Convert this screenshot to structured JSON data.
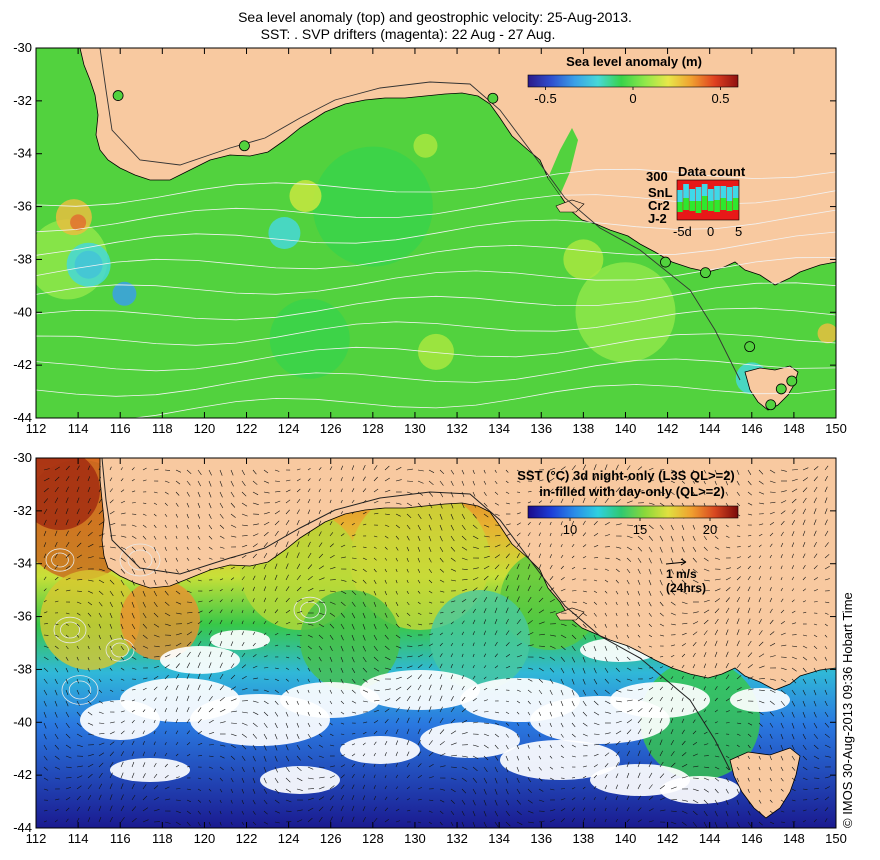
{
  "header": {
    "title_line1": "Sea level anomaly (top) and geostrophic velocity: 25-Aug-2013.",
    "title_line2": "SST: . SVP drifters (magenta): 22 Aug - 27 Aug."
  },
  "axes": {
    "x_ticks": [
      "112",
      "114",
      "116",
      "118",
      "120",
      "122",
      "124",
      "126",
      "128",
      "130",
      "132",
      "134",
      "136",
      "138",
      "140",
      "142",
      "144",
      "146",
      "148",
      "150"
    ],
    "y_ticks": [
      "-30",
      "-32",
      "-34",
      "-36",
      "-38",
      "-40",
      "-42",
      "-44"
    ],
    "lon_range": [
      112,
      150
    ],
    "lat_range": [
      -44,
      -30
    ]
  },
  "top_panel": {
    "colorbar": {
      "title": "Sea level anomaly (m)",
      "tick_labels": [
        "-0.5",
        "0",
        "0.5"
      ],
      "range": [
        -0.6,
        0.6
      ],
      "colors": [
        "#2b1a8a",
        "#2f4fcf",
        "#3aa0e8",
        "#47d8d8",
        "#39d34a",
        "#8fe84a",
        "#e8e84a",
        "#f0a030",
        "#e04020",
        "#901010"
      ]
    },
    "data_count": {
      "title": "Data count",
      "max_label": "300",
      "series_labels": [
        "SnL",
        "Cr2",
        "J-2"
      ],
      "series_colors": [
        "#3fd8e8",
        "#2ee82e",
        "#e81818"
      ],
      "x_tick_labels": [
        "-5d",
        "0",
        "5"
      ],
      "jason_values": [
        0.4,
        0.5,
        0.45,
        0.35,
        0.5,
        0.45,
        0.4,
        0.5,
        0.45,
        0.5
      ],
      "cryosat_values": [
        0.25,
        0.3,
        0.25,
        0.3,
        0.35,
        0.25,
        0.3,
        0.3,
        0.25,
        0.3
      ],
      "saral_values": [
        0.3,
        0.35,
        0.3,
        0.35,
        0.3,
        0.3,
        0.35,
        0.3,
        0.35,
        0.3
      ]
    },
    "tide_gauges": [
      {
        "lon": 115.9,
        "lat": -31.8
      },
      {
        "lon": 121.9,
        "lat": -33.7
      },
      {
        "lon": 133.7,
        "lat": -31.9
      },
      {
        "lon": 141.9,
        "lat": -38.1
      },
      {
        "lon": 143.8,
        "lat": -38.5
      },
      {
        "lon": 145.9,
        "lat": -41.3
      },
      {
        "lon": 147.9,
        "lat": -42.6
      },
      {
        "lon": 147.4,
        "lat": -42.9
      },
      {
        "lon": 146.9,
        "lat": -43.5
      }
    ]
  },
  "bottom_panel": {
    "colorbar": {
      "title_line1": "SST (°C) 3d night-only (L3S QL>=2)",
      "title_line2": "in-filled with day-only (QL>=2)",
      "tick_labels": [
        "10",
        "15",
        "20"
      ],
      "range": [
        7,
        22
      ],
      "colors": [
        "#1a0a8a",
        "#1c3ed8",
        "#2a8ce8",
        "#2ed0e0",
        "#30c870",
        "#8ad83a",
        "#e0e040",
        "#f0a030",
        "#d84820",
        "#7a0a0a"
      ]
    },
    "velocity_legend": {
      "label": "1 m/s",
      "sublabel": "(24hrs)"
    }
  },
  "footer": {
    "credit": "© IMOS 30-Aug-2013 09:36 Hobart Time"
  },
  "colors": {
    "land": "#f8c9a0",
    "cloud": "#ffffff",
    "contour": "#e8e8e8",
    "frame": "#000000"
  }
}
